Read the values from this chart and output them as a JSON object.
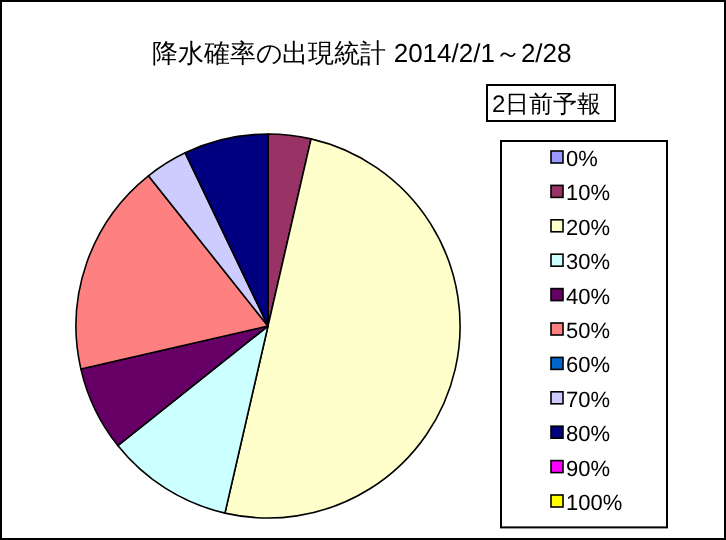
{
  "chart_data": {
    "type": "pie",
    "title": "降水確率の出現統計 2014/2/1～2/28",
    "legend_title": "2日前予報",
    "legend": "right",
    "categories": [
      "0%",
      "10%",
      "20%",
      "30%",
      "40%",
      "50%",
      "60%",
      "70%",
      "80%",
      "90%",
      "100%"
    ],
    "values": [
      0,
      3.6,
      50,
      10.7,
      7.1,
      17.9,
      0,
      3.6,
      7.1,
      0,
      0
    ],
    "colors": [
      "#9999ff",
      "#993366",
      "#ffffcc",
      "#ccffff",
      "#660066",
      "#ff8080",
      "#0066cc",
      "#ccccff",
      "#000080",
      "#ff00ff",
      "#ffff00"
    ]
  }
}
